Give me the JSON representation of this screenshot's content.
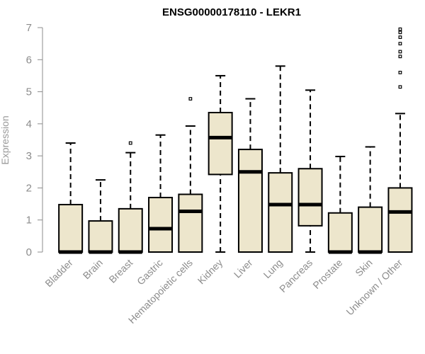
{
  "chart_data": {
    "type": "boxplot",
    "title": "ENSG00000178110 - LEKR1",
    "xlabel": "",
    "ylabel": "Expression",
    "ylim": [
      0,
      7
    ],
    "yticks": [
      0,
      1,
      2,
      3,
      4,
      5,
      6,
      7
    ],
    "grid": false,
    "legend": "none",
    "colors": {
      "box_fill": "#ede6cc",
      "box_stroke": "#000000",
      "axis": "#8c8c8c"
    },
    "categories": [
      "Bladder",
      "Brain",
      "Breast",
      "Gastric",
      "Hematopoietic cells",
      "Kidney",
      "Liver",
      "Lung",
      "Pancreas",
      "Prostate",
      "Skin",
      "Unknown / Other"
    ],
    "boxes": [
      {
        "category": "Bladder",
        "whisker_low": 0,
        "q1": 0,
        "median": 0,
        "q3": 1.48,
        "whisker_high": 3.4,
        "outliers": []
      },
      {
        "category": "Brain",
        "whisker_low": 0,
        "q1": 0,
        "median": 0,
        "q3": 0.97,
        "whisker_high": 2.25,
        "outliers": []
      },
      {
        "category": "Breast",
        "whisker_low": 0,
        "q1": 0,
        "median": 0,
        "q3": 1.35,
        "whisker_high": 3.1,
        "outliers": [
          3.4
        ]
      },
      {
        "category": "Gastric",
        "whisker_low": 0,
        "q1": 0,
        "median": 0.73,
        "q3": 1.7,
        "whisker_high": 3.65,
        "outliers": []
      },
      {
        "category": "Hematopoietic cells",
        "whisker_low": 0,
        "q1": 0,
        "median": 1.27,
        "q3": 1.8,
        "whisker_high": 3.93,
        "outliers": [
          4.78
        ]
      },
      {
        "category": "Kidney",
        "whisker_low": 0,
        "q1": 2.42,
        "median": 3.57,
        "q3": 4.35,
        "whisker_high": 5.5,
        "outliers": []
      },
      {
        "category": "Liver",
        "whisker_low": 0,
        "q1": 0,
        "median": 2.5,
        "q3": 3.2,
        "whisker_high": 4.78,
        "outliers": []
      },
      {
        "category": "Lung",
        "whisker_low": 0,
        "q1": 0,
        "median": 1.48,
        "q3": 2.47,
        "whisker_high": 5.8,
        "outliers": []
      },
      {
        "category": "Pancreas",
        "whisker_low": 0,
        "q1": 0.82,
        "median": 1.48,
        "q3": 2.6,
        "whisker_high": 5.05,
        "outliers": []
      },
      {
        "category": "Prostate",
        "whisker_low": 0,
        "q1": 0,
        "median": 0,
        "q3": 1.22,
        "whisker_high": 2.98,
        "outliers": []
      },
      {
        "category": "Skin",
        "whisker_low": 0,
        "q1": 0,
        "median": 0,
        "q3": 1.4,
        "whisker_high": 3.28,
        "outliers": []
      },
      {
        "category": "Unknown / Other",
        "whisker_low": 0,
        "q1": 0,
        "median": 1.25,
        "q3": 2.0,
        "whisker_high": 4.32,
        "outliers": [
          5.15,
          5.6,
          6.1,
          6.25,
          6.5,
          6.7,
          6.85,
          6.95
        ]
      }
    ]
  }
}
